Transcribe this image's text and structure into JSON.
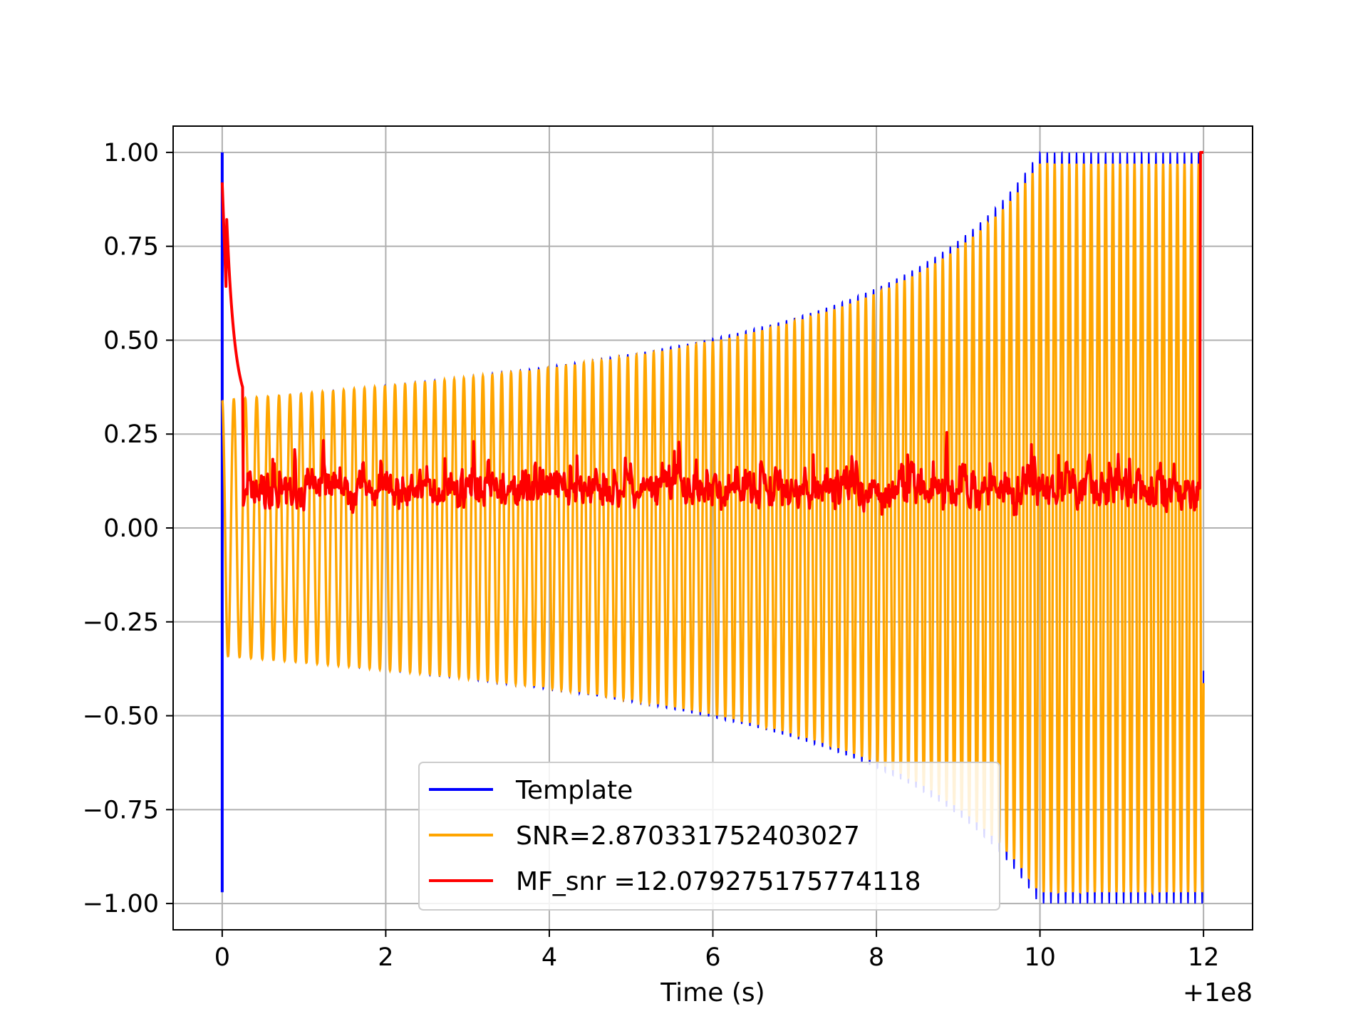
{
  "chart_data": {
    "type": "line",
    "xlabel": "Time (s)",
    "x_offset_label": "+1e8",
    "xlim": [
      -0.6,
      12.6
    ],
    "ylim": [
      -1.07,
      1.07
    ],
    "x_ticks": [
      0,
      2,
      4,
      6,
      8,
      10,
      12
    ],
    "x_tick_labels": [
      "0",
      "2",
      "4",
      "6",
      "8",
      "10",
      "12"
    ],
    "y_ticks": [
      1.0,
      0.75,
      0.5,
      0.25,
      0.0,
      -0.25,
      -0.5,
      -0.75,
      -1.0
    ],
    "y_tick_labels": [
      "1.00",
      "0.75",
      "0.50",
      "0.25",
      "0.00",
      "−0.25",
      "−0.50",
      "−0.75",
      "−1.00"
    ],
    "grid": true,
    "legend_position": "lower-center",
    "series": [
      {
        "name": "Template",
        "color": "#0000ff",
        "description": "chirp oscillation from t=0 to t=12, amplitude growing from about 0.34 to 1.0",
        "t_start": 0,
        "t_end": 12,
        "amplitude_start": 0.34,
        "amplitude_end": 1.0
      },
      {
        "name": "SNR=2.870331752403027",
        "color": "#ffa500",
        "t_start": 0,
        "t_end": 12,
        "amplitude_start": 0.34,
        "amplitude_end": 0.97
      },
      {
        "name": "MF_snr =12.079275175774118",
        "color": "#ff0000",
        "t_start": 0,
        "t_end": 12,
        "start_value": 0.92,
        "end_value": 1.0,
        "baseline": 0.1
      }
    ]
  }
}
